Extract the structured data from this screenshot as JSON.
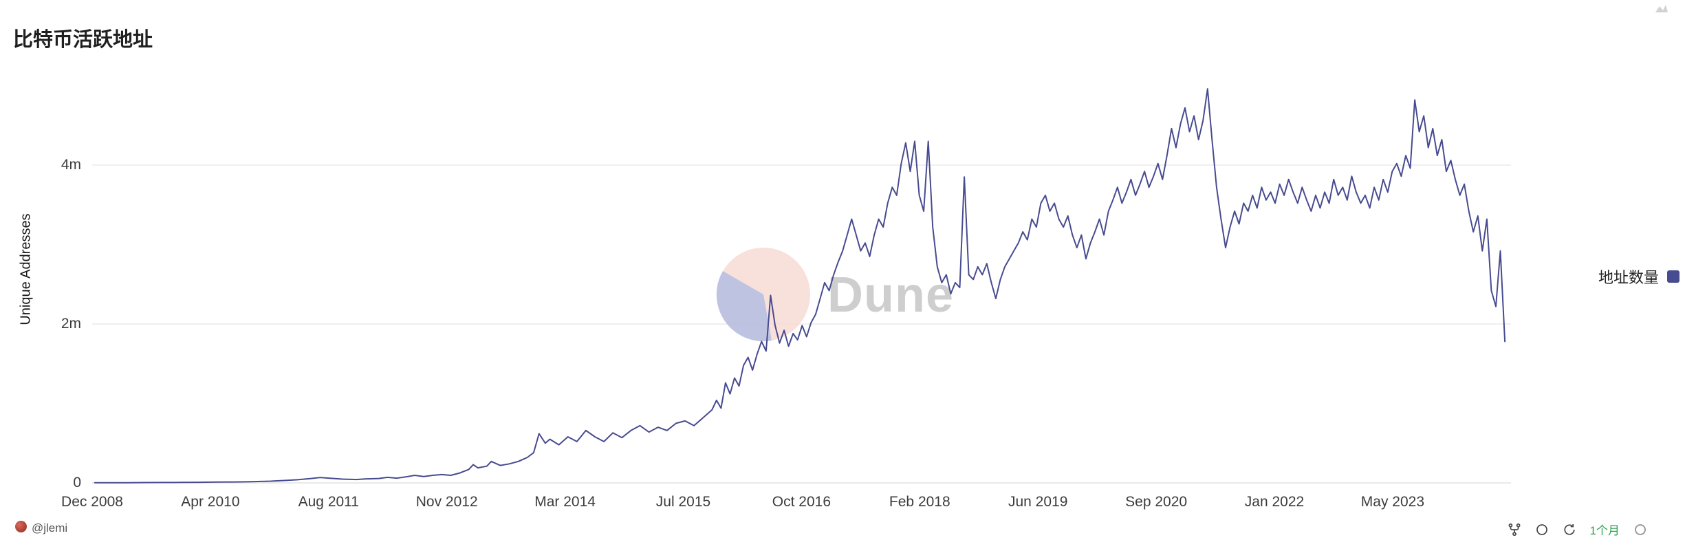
{
  "page": {
    "title": "比特币活跃地址"
  },
  "chart": {
    "y_axis_label": "Unique Addresses",
    "y_ticks": [
      "4m",
      "2m",
      "0"
    ],
    "x_ticks": [
      "Dec 2008",
      "Apr 2010",
      "Aug 2011",
      "Nov 2012",
      "Mar 2014",
      "Jul 2015",
      "Oct 2016",
      "Feb 2018",
      "Jun 2019",
      "Sep 2020",
      "Jan 2022",
      "May 2023"
    ],
    "legend_label": "地址数量",
    "legend_color": "#474b8f",
    "watermark_text": "Dune",
    "watermark_colors": {
      "circle_pink": "#f7dbd5",
      "slice_purple": "#b5b9de",
      "text_gray": "#c6c6c6"
    },
    "grid_color": "#ebebeb"
  },
  "chart_data": {
    "type": "line",
    "title": "比特币活跃地址",
    "xlabel": "",
    "ylabel": "Unique Addresses",
    "x_unit": "decimal_year",
    "y_unit": "millions_of_unique_addresses",
    "xlim": [
      2008.92,
      2024.75
    ],
    "ylim": [
      0,
      5.2
    ],
    "grid": "horizontal",
    "legend_position": "right",
    "series": [
      {
        "name": "地址数量",
        "color": "#474b8f",
        "points": [
          [
            2008.95,
            0.002
          ],
          [
            2009.1,
            0.003
          ],
          [
            2009.3,
            0.003
          ],
          [
            2009.5,
            0.004
          ],
          [
            2009.7,
            0.005
          ],
          [
            2009.9,
            0.006
          ],
          [
            2010.1,
            0.008
          ],
          [
            2010.3,
            0.01
          ],
          [
            2010.5,
            0.012
          ],
          [
            2010.7,
            0.016
          ],
          [
            2010.9,
            0.022
          ],
          [
            2011.05,
            0.03
          ],
          [
            2011.2,
            0.04
          ],
          [
            2011.35,
            0.055
          ],
          [
            2011.45,
            0.068
          ],
          [
            2011.55,
            0.06
          ],
          [
            2011.7,
            0.048
          ],
          [
            2011.85,
            0.042
          ],
          [
            2011.95,
            0.05
          ],
          [
            2012.1,
            0.055
          ],
          [
            2012.2,
            0.07
          ],
          [
            2012.3,
            0.06
          ],
          [
            2012.4,
            0.075
          ],
          [
            2012.5,
            0.095
          ],
          [
            2012.6,
            0.08
          ],
          [
            2012.7,
            0.095
          ],
          [
            2012.8,
            0.105
          ],
          [
            2012.9,
            0.095
          ],
          [
            2013.0,
            0.125
          ],
          [
            2013.1,
            0.17
          ],
          [
            2013.15,
            0.23
          ],
          [
            2013.2,
            0.19
          ],
          [
            2013.3,
            0.21
          ],
          [
            2013.35,
            0.27
          ],
          [
            2013.45,
            0.22
          ],
          [
            2013.55,
            0.24
          ],
          [
            2013.65,
            0.27
          ],
          [
            2013.75,
            0.32
          ],
          [
            2013.82,
            0.38
          ],
          [
            2013.88,
            0.62
          ],
          [
            2013.95,
            0.5
          ],
          [
            2014.0,
            0.55
          ],
          [
            2014.1,
            0.48
          ],
          [
            2014.2,
            0.58
          ],
          [
            2014.3,
            0.52
          ],
          [
            2014.4,
            0.66
          ],
          [
            2014.5,
            0.58
          ],
          [
            2014.6,
            0.52
          ],
          [
            2014.7,
            0.63
          ],
          [
            2014.8,
            0.57
          ],
          [
            2014.9,
            0.66
          ],
          [
            2015.0,
            0.72
          ],
          [
            2015.1,
            0.64
          ],
          [
            2015.2,
            0.7
          ],
          [
            2015.3,
            0.66
          ],
          [
            2015.4,
            0.75
          ],
          [
            2015.5,
            0.78
          ],
          [
            2015.6,
            0.72
          ],
          [
            2015.7,
            0.82
          ],
          [
            2015.8,
            0.92
          ],
          [
            2015.85,
            1.04
          ],
          [
            2015.9,
            0.94
          ],
          [
            2015.95,
            1.26
          ],
          [
            2016.0,
            1.12
          ],
          [
            2016.05,
            1.32
          ],
          [
            2016.1,
            1.22
          ],
          [
            2016.15,
            1.48
          ],
          [
            2016.2,
            1.58
          ],
          [
            2016.25,
            1.42
          ],
          [
            2016.3,
            1.62
          ],
          [
            2016.35,
            1.78
          ],
          [
            2016.4,
            1.66
          ],
          [
            2016.45,
            2.36
          ],
          [
            2016.5,
            1.98
          ],
          [
            2016.55,
            1.76
          ],
          [
            2016.6,
            1.92
          ],
          [
            2016.65,
            1.72
          ],
          [
            2016.7,
            1.88
          ],
          [
            2016.75,
            1.8
          ],
          [
            2016.8,
            1.98
          ],
          [
            2016.85,
            1.84
          ],
          [
            2016.9,
            2.02
          ],
          [
            2016.95,
            2.12
          ],
          [
            2017.0,
            2.32
          ],
          [
            2017.05,
            2.52
          ],
          [
            2017.1,
            2.42
          ],
          [
            2017.15,
            2.62
          ],
          [
            2017.2,
            2.78
          ],
          [
            2017.25,
            2.92
          ],
          [
            2017.3,
            3.12
          ],
          [
            2017.35,
            3.32
          ],
          [
            2017.4,
            3.12
          ],
          [
            2017.45,
            2.92
          ],
          [
            2017.5,
            3.02
          ],
          [
            2017.55,
            2.85
          ],
          [
            2017.6,
            3.12
          ],
          [
            2017.65,
            3.32
          ],
          [
            2017.7,
            3.22
          ],
          [
            2017.75,
            3.52
          ],
          [
            2017.8,
            3.72
          ],
          [
            2017.85,
            3.62
          ],
          [
            2017.9,
            4.02
          ],
          [
            2017.95,
            4.28
          ],
          [
            2018.0,
            3.92
          ],
          [
            2018.05,
            4.3
          ],
          [
            2018.1,
            3.62
          ],
          [
            2018.15,
            3.42
          ],
          [
            2018.2,
            4.3
          ],
          [
            2018.25,
            3.22
          ],
          [
            2018.3,
            2.72
          ],
          [
            2018.35,
            2.52
          ],
          [
            2018.4,
            2.62
          ],
          [
            2018.45,
            2.38
          ],
          [
            2018.5,
            2.52
          ],
          [
            2018.55,
            2.46
          ],
          [
            2018.6,
            3.85
          ],
          [
            2018.65,
            2.62
          ],
          [
            2018.7,
            2.56
          ],
          [
            2018.75,
            2.72
          ],
          [
            2018.8,
            2.62
          ],
          [
            2018.85,
            2.76
          ],
          [
            2018.9,
            2.52
          ],
          [
            2018.95,
            2.32
          ],
          [
            2019.0,
            2.56
          ],
          [
            2019.05,
            2.72
          ],
          [
            2019.1,
            2.82
          ],
          [
            2019.15,
            2.92
          ],
          [
            2019.2,
            3.02
          ],
          [
            2019.25,
            3.16
          ],
          [
            2019.3,
            3.06
          ],
          [
            2019.35,
            3.32
          ],
          [
            2019.4,
            3.22
          ],
          [
            2019.45,
            3.52
          ],
          [
            2019.5,
            3.62
          ],
          [
            2019.55,
            3.42
          ],
          [
            2019.6,
            3.52
          ],
          [
            2019.65,
            3.32
          ],
          [
            2019.7,
            3.22
          ],
          [
            2019.75,
            3.36
          ],
          [
            2019.8,
            3.12
          ],
          [
            2019.85,
            2.96
          ],
          [
            2019.9,
            3.12
          ],
          [
            2019.95,
            2.82
          ],
          [
            2020.0,
            3.02
          ],
          [
            2020.05,
            3.16
          ],
          [
            2020.1,
            3.32
          ],
          [
            2020.15,
            3.12
          ],
          [
            2020.2,
            3.42
          ],
          [
            2020.25,
            3.56
          ],
          [
            2020.3,
            3.72
          ],
          [
            2020.35,
            3.52
          ],
          [
            2020.4,
            3.66
          ],
          [
            2020.45,
            3.82
          ],
          [
            2020.5,
            3.62
          ],
          [
            2020.55,
            3.76
          ],
          [
            2020.6,
            3.92
          ],
          [
            2020.65,
            3.72
          ],
          [
            2020.7,
            3.86
          ],
          [
            2020.75,
            4.02
          ],
          [
            2020.8,
            3.82
          ],
          [
            2020.85,
            4.12
          ],
          [
            2020.9,
            4.46
          ],
          [
            2020.95,
            4.22
          ],
          [
            2021.0,
            4.52
          ],
          [
            2021.05,
            4.72
          ],
          [
            2021.1,
            4.42
          ],
          [
            2021.15,
            4.62
          ],
          [
            2021.2,
            4.32
          ],
          [
            2021.25,
            4.56
          ],
          [
            2021.3,
            4.96
          ],
          [
            2021.35,
            4.32
          ],
          [
            2021.4,
            3.72
          ],
          [
            2021.45,
            3.32
          ],
          [
            2021.5,
            2.96
          ],
          [
            2021.55,
            3.22
          ],
          [
            2021.6,
            3.42
          ],
          [
            2021.65,
            3.26
          ],
          [
            2021.7,
            3.52
          ],
          [
            2021.75,
            3.42
          ],
          [
            2021.8,
            3.62
          ],
          [
            2021.85,
            3.46
          ],
          [
            2021.9,
            3.72
          ],
          [
            2021.95,
            3.56
          ],
          [
            2022.0,
            3.66
          ],
          [
            2022.05,
            3.52
          ],
          [
            2022.1,
            3.76
          ],
          [
            2022.15,
            3.62
          ],
          [
            2022.2,
            3.82
          ],
          [
            2022.25,
            3.66
          ],
          [
            2022.3,
            3.52
          ],
          [
            2022.35,
            3.72
          ],
          [
            2022.4,
            3.56
          ],
          [
            2022.45,
            3.42
          ],
          [
            2022.5,
            3.62
          ],
          [
            2022.55,
            3.46
          ],
          [
            2022.6,
            3.66
          ],
          [
            2022.65,
            3.52
          ],
          [
            2022.7,
            3.82
          ],
          [
            2022.75,
            3.62
          ],
          [
            2022.8,
            3.72
          ],
          [
            2022.85,
            3.56
          ],
          [
            2022.9,
            3.86
          ],
          [
            2022.95,
            3.66
          ],
          [
            2023.0,
            3.52
          ],
          [
            2023.05,
            3.62
          ],
          [
            2023.1,
            3.46
          ],
          [
            2023.15,
            3.72
          ],
          [
            2023.2,
            3.56
          ],
          [
            2023.25,
            3.82
          ],
          [
            2023.3,
            3.66
          ],
          [
            2023.35,
            3.92
          ],
          [
            2023.4,
            4.02
          ],
          [
            2023.45,
            3.86
          ],
          [
            2023.5,
            4.12
          ],
          [
            2023.55,
            3.96
          ],
          [
            2023.6,
            4.82
          ],
          [
            2023.65,
            4.42
          ],
          [
            2023.7,
            4.62
          ],
          [
            2023.75,
            4.22
          ],
          [
            2023.8,
            4.46
          ],
          [
            2023.85,
            4.12
          ],
          [
            2023.9,
            4.32
          ],
          [
            2023.95,
            3.92
          ],
          [
            2024.0,
            4.06
          ],
          [
            2024.05,
            3.82
          ],
          [
            2024.1,
            3.62
          ],
          [
            2024.15,
            3.76
          ],
          [
            2024.2,
            3.42
          ],
          [
            2024.25,
            3.16
          ],
          [
            2024.3,
            3.36
          ],
          [
            2024.35,
            2.92
          ],
          [
            2024.4,
            3.32
          ],
          [
            2024.45,
            2.42
          ],
          [
            2024.5,
            2.22
          ],
          [
            2024.55,
            2.92
          ],
          [
            2024.6,
            1.78
          ]
        ]
      }
    ]
  },
  "footer": {
    "author_handle": "@jlemi",
    "refresh_age": "1个月",
    "refresh_age_color": "#2da44e"
  }
}
